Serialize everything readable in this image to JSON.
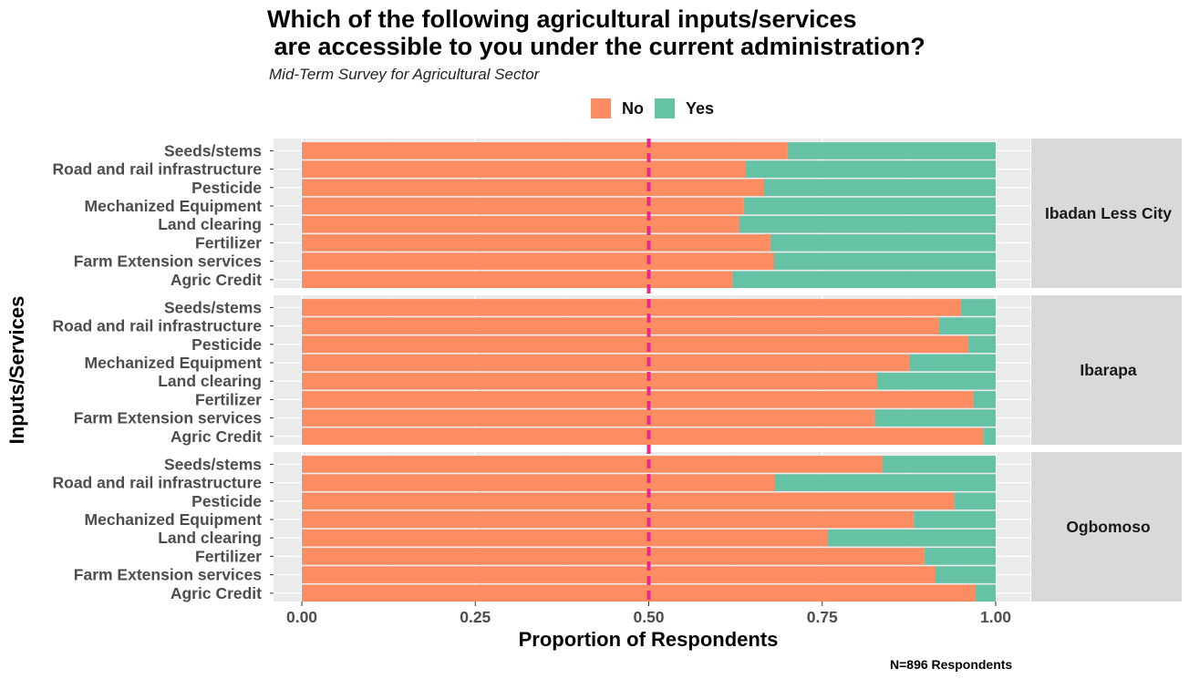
{
  "chart_data": {
    "type": "bar",
    "orientation": "horizontal",
    "stacked": true,
    "title_lines": [
      "Which of the following agricultural inputs/services",
      " are accessible to you under the current administration?"
    ],
    "subtitle": "Mid-Term Survey for Agricultural Sector",
    "xlabel": "Proportion of Respondents",
    "ylabel": "Inputs/Services",
    "caption": "N=896 Respondents",
    "xlim": [
      0,
      1
    ],
    "x_ticks": [
      "0.00",
      "0.25",
      "0.50",
      "0.75",
      "1.00"
    ],
    "reference_line": {
      "x": 0.5,
      "style": "dashed",
      "color": "#e7298a"
    },
    "legend": {
      "position": "top",
      "entries": [
        {
          "name": "No",
          "color": "#fc8d62"
        },
        {
          "name": "Yes",
          "color": "#66c2a5"
        }
      ]
    },
    "categories": [
      "Seeds/stems",
      "Road and rail infrastructure",
      "Pesticide",
      "Mechanized Equipment",
      "Land clearing",
      "Fertilizer",
      "Farm Extension services",
      "Agric Credit"
    ],
    "facets": [
      {
        "name": "Ibadan Less City",
        "no": [
          0.7,
          0.64,
          0.665,
          0.637,
          0.63,
          0.675,
          0.68,
          0.62
        ]
      },
      {
        "name": "Ibarapa",
        "no": [
          0.95,
          0.918,
          0.96,
          0.875,
          0.828,
          0.967,
          0.825,
          0.982
        ]
      },
      {
        "name": "Ogbomoso",
        "no": [
          0.837,
          0.682,
          0.94,
          0.882,
          0.757,
          0.897,
          0.912,
          0.97
        ]
      }
    ]
  }
}
